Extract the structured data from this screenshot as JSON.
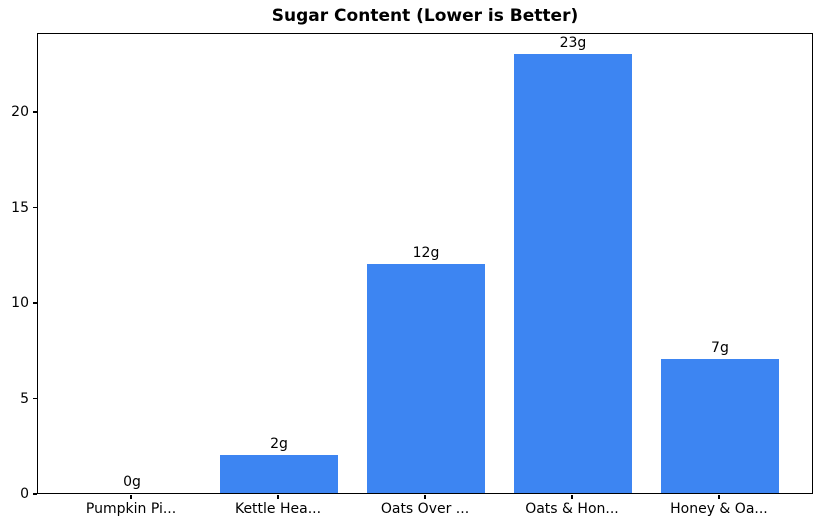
{
  "chart_data": {
    "type": "bar",
    "title": "Sugar Content (Lower is Better)",
    "categories": [
      "Pumpkin Pi...",
      "Kettle Hea...",
      "Oats Over ...",
      "Oats & Hon...",
      "Honey & Oa..."
    ],
    "values": [
      0,
      2,
      12,
      23,
      7
    ],
    "bar_labels": [
      "0g",
      "2g",
      "12g",
      "23g",
      "7g"
    ],
    "xlabel": "",
    "ylabel": "",
    "ylim": [
      0,
      24.15
    ],
    "xlim": [
      -0.64,
      4.64
    ],
    "yticks": [
      0,
      5,
      10,
      15,
      20
    ],
    "bar_width_units": 0.8,
    "bar_color": "#3d85f2",
    "spine_color": "#000000",
    "text_color": "#000000",
    "background_color": "#ffffff",
    "grid": false,
    "legend": null
  }
}
